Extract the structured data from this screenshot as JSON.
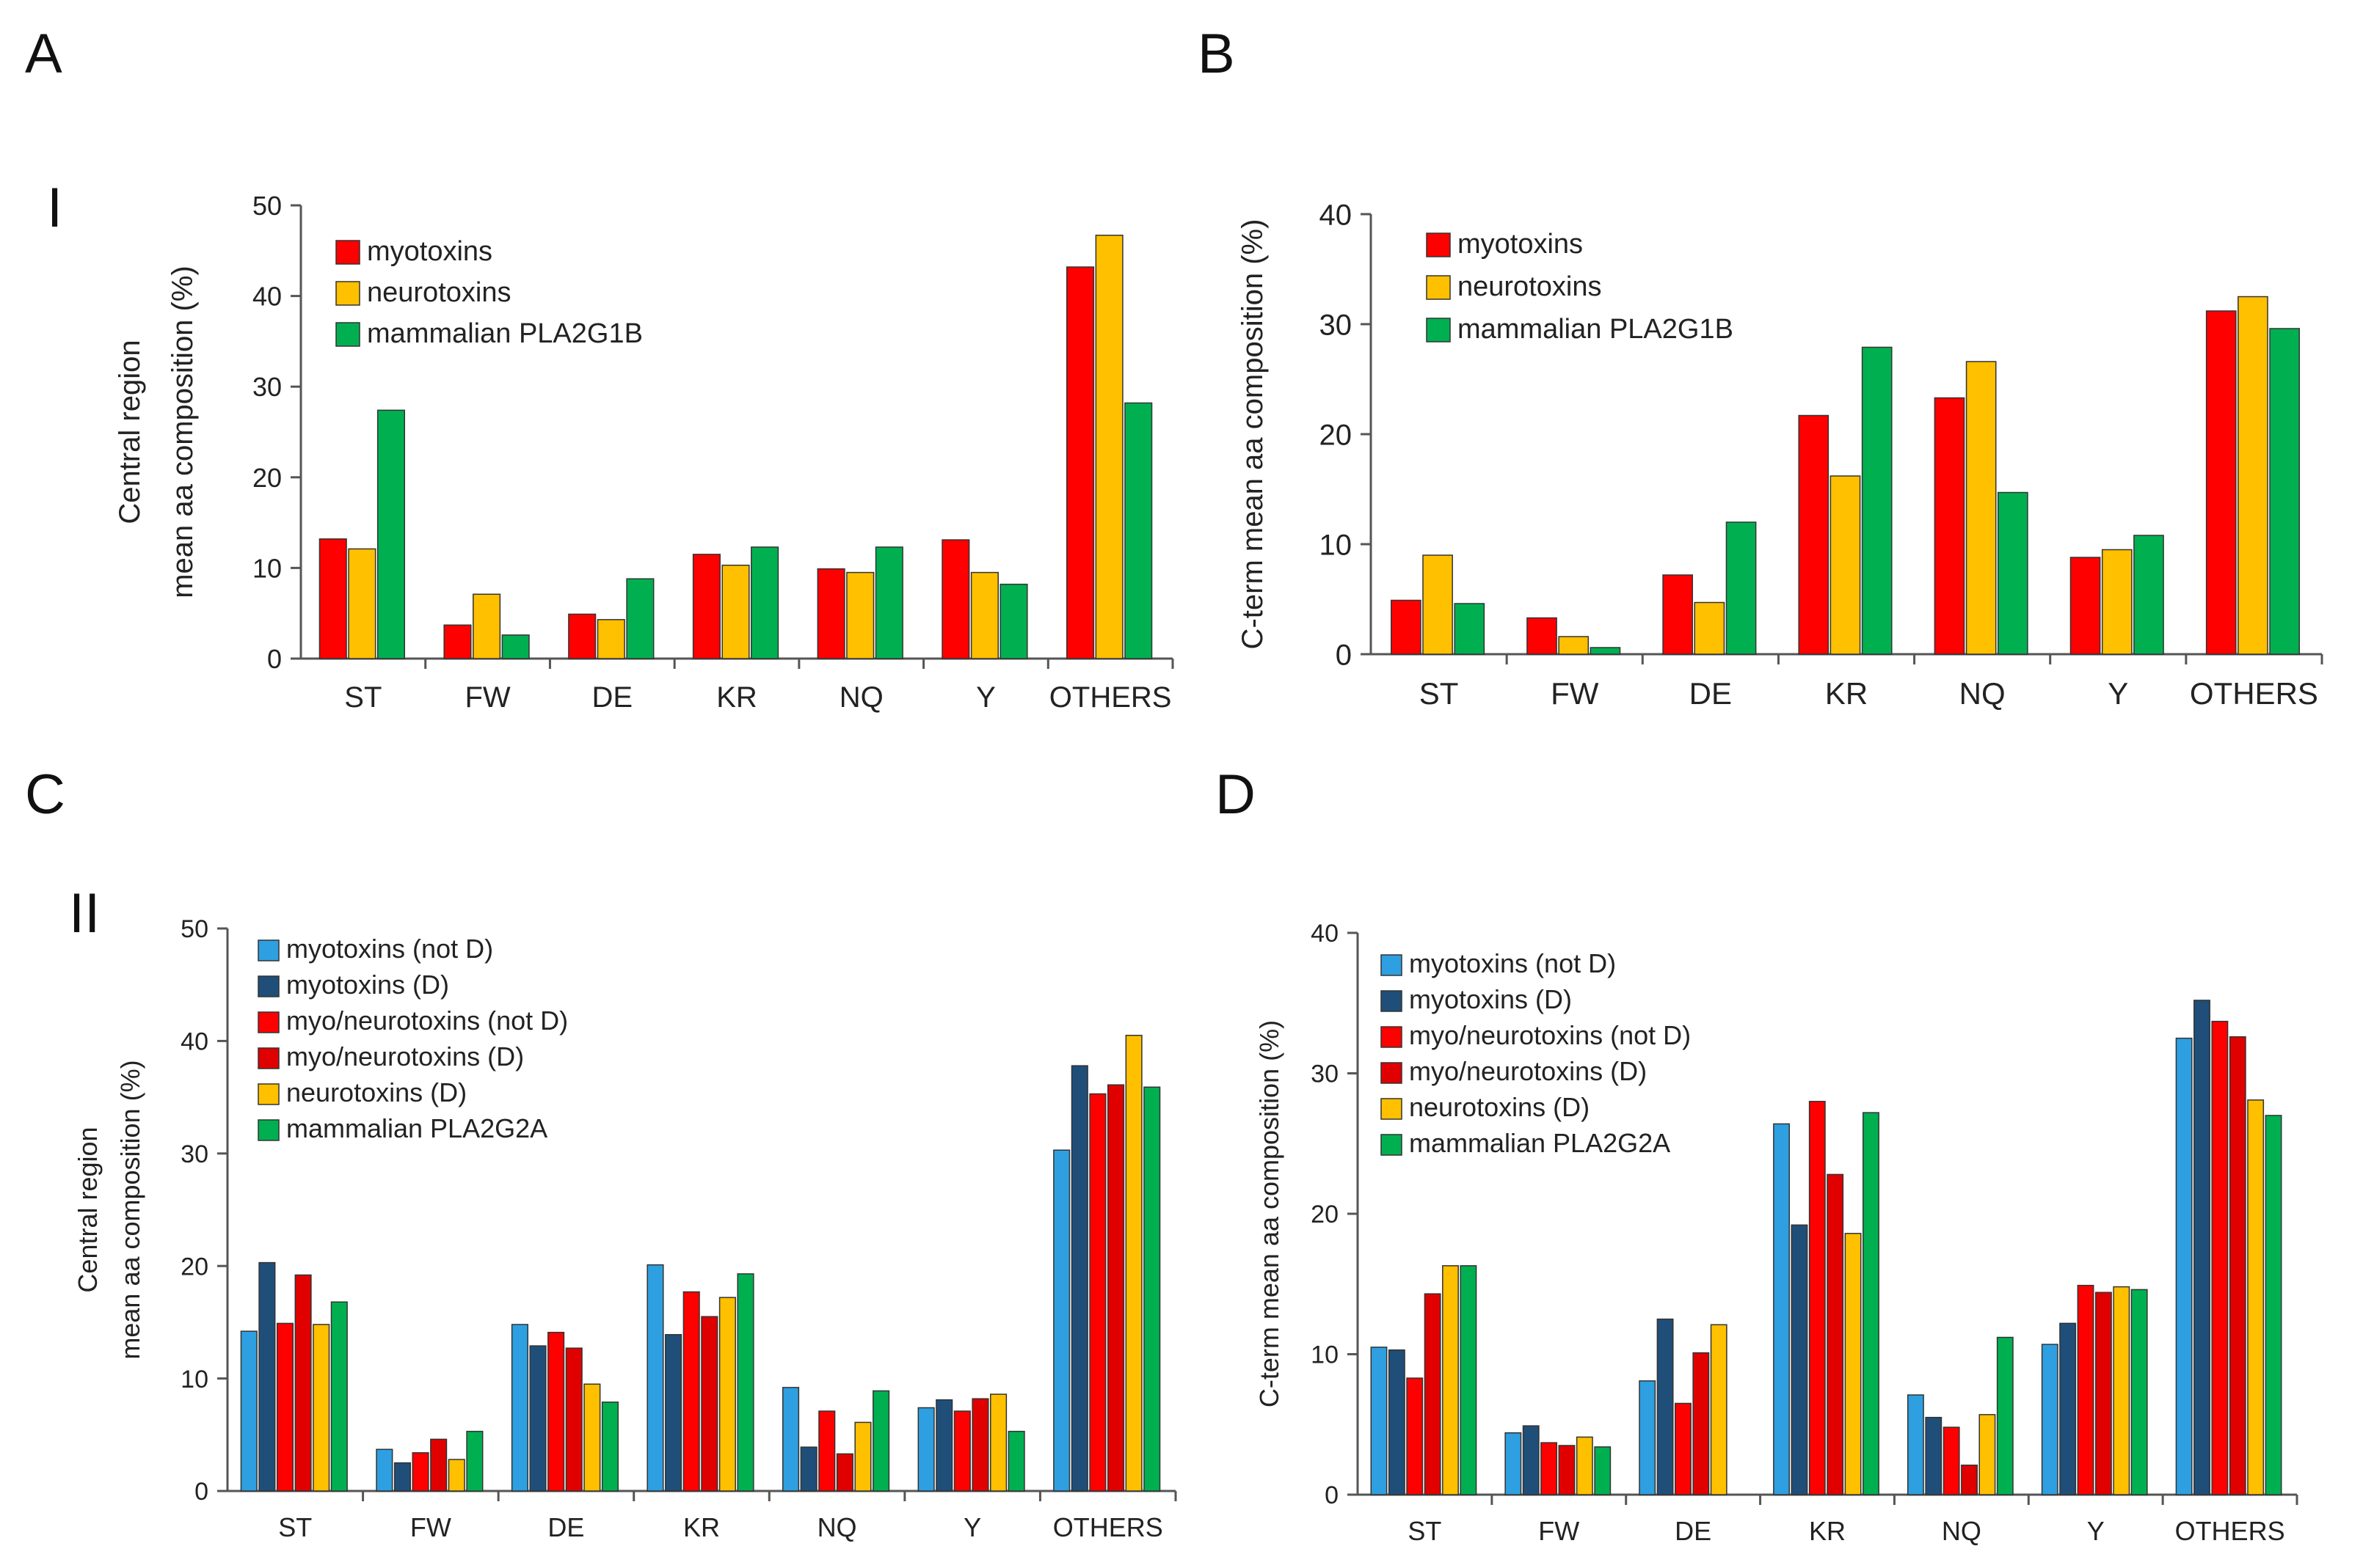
{
  "figure": {
    "panel_letters": [
      "A",
      "B",
      "C",
      "D"
    ],
    "row_labels": [
      "I",
      "II"
    ]
  },
  "colors": {
    "red": "#ff0000",
    "orange": "#ffc000",
    "green": "#00b050",
    "light_blue": "#2e9fe0",
    "navy": "#1f4e79",
    "dark_red": "#e00000",
    "axis": "#555555"
  },
  "chart_data": [
    {
      "panel": "A",
      "type": "bar",
      "ylabel": [
        "Central region",
        "mean aa composition (%)"
      ],
      "ylim": [
        0,
        50
      ],
      "yticks": [
        0,
        10,
        20,
        30,
        40,
        50
      ],
      "categories": [
        "ST",
        "FW",
        "DE",
        "KR",
        "NQ",
        "Y",
        "OTHERS"
      ],
      "legend_position": "top-left",
      "series": [
        {
          "name": "myotoxins",
          "color": "#ff0000",
          "values": [
            13.2,
            3.7,
            4.9,
            11.5,
            9.9,
            13.1,
            43.2
          ]
        },
        {
          "name": "neurotoxins",
          "color": "#ffc000",
          "values": [
            12.1,
            7.1,
            4.3,
            10.3,
            9.5,
            9.5,
            46.7
          ]
        },
        {
          "name": "mammalian PLA2G1B",
          "color": "#00b050",
          "values": [
            27.4,
            2.6,
            8.8,
            12.3,
            12.3,
            8.2,
            28.2
          ]
        }
      ]
    },
    {
      "panel": "B",
      "type": "bar",
      "ylabel": [
        "C-term mean aa composition (%)"
      ],
      "ylim": [
        0,
        40
      ],
      "yticks": [
        0,
        10,
        20,
        30,
        40
      ],
      "categories": [
        "ST",
        "FW",
        "DE",
        "KR",
        "NQ",
        "Y",
        "OTHERS"
      ],
      "legend_position": "top-left",
      "series": [
        {
          "name": "myotoxins",
          "color": "#ff0000",
          "values": [
            4.9,
            3.3,
            7.2,
            21.7,
            23.3,
            8.8,
            31.2
          ]
        },
        {
          "name": "neurotoxins",
          "color": "#ffc000",
          "values": [
            9.0,
            1.6,
            4.7,
            16.2,
            26.6,
            9.5,
            32.5
          ]
        },
        {
          "name": "mammalian PLA2G1B",
          "color": "#00b050",
          "values": [
            4.6,
            0.6,
            12.0,
            27.9,
            14.7,
            10.8,
            29.6
          ]
        }
      ]
    },
    {
      "panel": "C",
      "type": "bar",
      "ylabel": [
        "Central region",
        "mean aa composition (%)"
      ],
      "ylim": [
        0,
        50
      ],
      "yticks": [
        0,
        10,
        20,
        30,
        40,
        50
      ],
      "categories": [
        "ST",
        "FW",
        "DE",
        "KR",
        "NQ",
        "Y",
        "OTHERS"
      ],
      "legend_position": "top-left",
      "series": [
        {
          "name": "myotoxins (not D)",
          "color": "#2e9fe0",
          "values": [
            14.2,
            3.7,
            14.8,
            20.1,
            9.2,
            7.4,
            30.3
          ]
        },
        {
          "name": "myotoxins (D)",
          "color": "#1f4e79",
          "values": [
            20.3,
            2.5,
            12.9,
            13.9,
            3.9,
            8.1,
            37.8
          ]
        },
        {
          "name": "myo/neurotoxins (not D)",
          "color": "#ff0000",
          "values": [
            14.9,
            3.4,
            14.1,
            17.7,
            7.1,
            7.1,
            35.3
          ]
        },
        {
          "name": "myo/neurotoxins (D)",
          "color": "#e00000",
          "values": [
            19.2,
            4.6,
            12.7,
            15.5,
            3.3,
            8.2,
            36.1
          ]
        },
        {
          "name": "neurotoxins (D)",
          "color": "#ffc000",
          "values": [
            14.8,
            2.8,
            9.5,
            17.2,
            6.1,
            8.6,
            40.5
          ]
        },
        {
          "name": "mammalian PLA2G2A",
          "color": "#00b050",
          "values": [
            16.8,
            5.3,
            7.9,
            19.3,
            8.9,
            5.3,
            35.9
          ]
        }
      ]
    },
    {
      "panel": "D",
      "type": "bar",
      "ylabel": [
        "C-term mean aa composition (%)"
      ],
      "ylim": [
        0,
        40
      ],
      "yticks": [
        0,
        10,
        20,
        30,
        40
      ],
      "categories": [
        "ST",
        "FW",
        "DE",
        "KR",
        "NQ",
        "Y",
        "OTHERS"
      ],
      "legend_position": "top-left",
      "series": [
        {
          "name": "myotoxins (not D)",
          "color": "#2e9fe0",
          "values": [
            10.5,
            4.4,
            8.1,
            26.4,
            7.1,
            10.7,
            32.5
          ]
        },
        {
          "name": "myotoxins (D)",
          "color": "#1f4e79",
          "values": [
            10.3,
            4.9,
            12.5,
            19.2,
            5.5,
            12.2,
            35.2
          ]
        },
        {
          "name": "myo/neurotoxins (not D)",
          "color": "#ff0000",
          "values": [
            8.3,
            3.7,
            6.5,
            28.0,
            4.8,
            14.9,
            33.7
          ]
        },
        {
          "name": "myo/neurotoxins (D)",
          "color": "#e00000",
          "values": [
            14.3,
            3.5,
            10.1,
            22.8,
            2.1,
            14.4,
            32.6
          ]
        },
        {
          "name": "neurotoxins (D)",
          "color": "#ffc000",
          "values": [
            16.3,
            4.1,
            12.1,
            18.6,
            5.7,
            14.8,
            28.1
          ]
        },
        {
          "name": "mammalian PLA2G2A",
          "color": "#00b050",
          "values": [
            16.3,
            3.4,
            0,
            27.2,
            11.2,
            14.6,
            27.0
          ]
        }
      ]
    }
  ]
}
